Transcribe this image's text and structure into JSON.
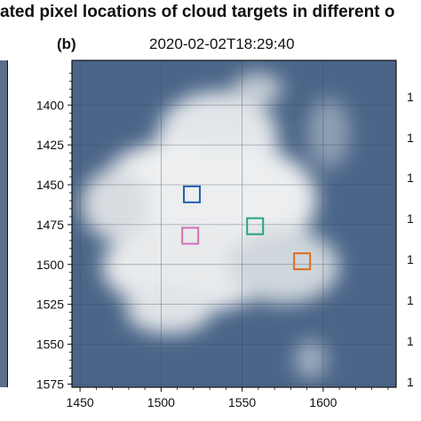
{
  "figure": {
    "title": "ated pixel locations of cloud targets in different o",
    "panel_label": "(b)",
    "panel_time": "2020-02-02T18:29:40"
  },
  "chart_data": {
    "type": "scatter",
    "title": "2020-02-02T18:29:40",
    "xlabel": "",
    "ylabel": "",
    "xlim": [
      1445,
      1645
    ],
    "ylim": [
      1577,
      1372
    ],
    "y_inverted": true,
    "x_ticks": [
      1450,
      1500,
      1550,
      1600
    ],
    "y_ticks": [
      1400,
      1425,
      1450,
      1475,
      1500,
      1525,
      1550,
      1575
    ],
    "grid": true,
    "background": "cloud satellite image",
    "series": [
      {
        "color": "#1f5fa8",
        "x": [
          1519
        ],
        "y": [
          1456
        ]
      },
      {
        "color": "#2aa37a",
        "x": [
          1558
        ],
        "y": [
          1476
        ]
      },
      {
        "color": "#d070b0",
        "x": [
          1518
        ],
        "y": [
          1482
        ]
      },
      {
        "color": "#e06a1a",
        "x": [
          1587
        ],
        "y": [
          1498
        ]
      }
    ]
  },
  "right_neighbor_ticks": [
    "1",
    "1",
    "1",
    "1",
    "1",
    "1",
    "1",
    "1"
  ]
}
